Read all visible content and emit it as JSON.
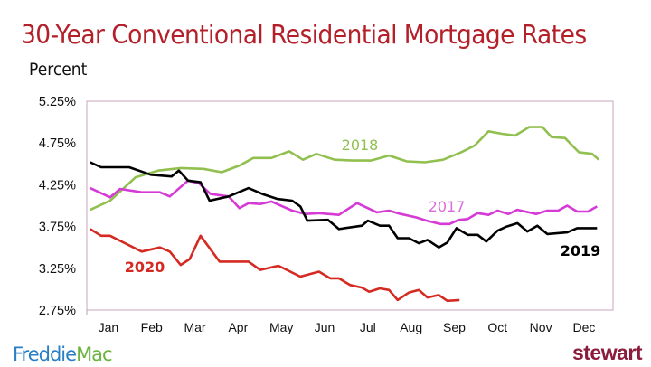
{
  "chart_data": {
    "type": "line",
    "title": "30-Year Conventional Residential Mortgage Rates",
    "ylabel": "Percent",
    "xlabel": "",
    "x_unit": "month (Jan = 1)",
    "xlim": [
      0.5,
      12.67
    ],
    "ylim": [
      2.75,
      5.25
    ],
    "y_ticks": [
      "5.25%",
      "4.75%",
      "4.25%",
      "3.75%",
      "3.25%",
      "2.75%"
    ],
    "y_tick_values": [
      5.25,
      4.75,
      4.25,
      3.75,
      3.25,
      2.75
    ],
    "x_ticks": [
      "Jan",
      "Feb",
      "Mar",
      "Apr",
      "May",
      "Jun",
      "Jul",
      "Aug",
      "Sep",
      "Oct",
      "Nov",
      "Dec"
    ],
    "grid": false,
    "legend": "inline labels",
    "series": [
      {
        "name": "2018",
        "color": "#92c050",
        "x": [
          0.58,
          1.04,
          1.63,
          2.15,
          2.67,
          3.2,
          3.62,
          4.03,
          4.35,
          4.77,
          5.18,
          5.5,
          5.81,
          6.23,
          6.65,
          7.07,
          7.49,
          7.9,
          8.32,
          8.74,
          9.16,
          9.47,
          9.79,
          10.1,
          10.41,
          10.73,
          11.04,
          11.25,
          11.56,
          11.88,
          12.19,
          12.34
        ],
        "y": [
          3.95,
          4.06,
          4.34,
          4.42,
          4.45,
          4.44,
          4.4,
          4.48,
          4.57,
          4.57,
          4.65,
          4.55,
          4.62,
          4.55,
          4.54,
          4.54,
          4.6,
          4.53,
          4.52,
          4.55,
          4.64,
          4.72,
          4.89,
          4.86,
          4.84,
          4.94,
          4.94,
          4.82,
          4.81,
          4.64,
          4.62,
          4.55
        ]
      },
      {
        "name": "2017",
        "color": "#d63ad6",
        "x": [
          0.58,
          1.04,
          1.27,
          1.77,
          2.19,
          2.42,
          2.84,
          3.09,
          3.36,
          3.78,
          4.03,
          4.24,
          4.51,
          4.77,
          5.25,
          5.56,
          5.87,
          6.33,
          6.75,
          7.21,
          7.49,
          7.76,
          8.11,
          8.36,
          8.68,
          8.89,
          9.1,
          9.31,
          9.54,
          9.79,
          10.0,
          10.25,
          10.46,
          10.89,
          11.15,
          11.4,
          11.61,
          11.84,
          12.09,
          12.3
        ],
        "y": [
          4.21,
          4.1,
          4.2,
          4.16,
          4.16,
          4.11,
          4.3,
          4.27,
          4.14,
          4.11,
          3.97,
          4.03,
          4.02,
          4.05,
          3.94,
          3.9,
          3.91,
          3.89,
          4.03,
          3.92,
          3.94,
          3.9,
          3.86,
          3.82,
          3.78,
          3.78,
          3.83,
          3.84,
          3.91,
          3.89,
          3.94,
          3.9,
          3.95,
          3.9,
          3.94,
          3.94,
          4.0,
          3.93,
          3.93,
          3.99
        ]
      },
      {
        "name": "2019",
        "color": "#000000",
        "x": [
          0.58,
          0.83,
          1.48,
          1.98,
          2.46,
          2.63,
          2.84,
          3.13,
          3.34,
          3.78,
          4.24,
          4.56,
          4.91,
          5.25,
          5.44,
          5.6,
          6.08,
          6.33,
          6.86,
          7.0,
          7.28,
          7.49,
          7.69,
          7.95,
          8.18,
          8.38,
          8.64,
          8.84,
          9.05,
          9.31,
          9.54,
          9.74,
          10.0,
          10.21,
          10.46,
          10.69,
          10.92,
          11.15,
          11.61,
          11.84,
          12.3
        ],
        "y": [
          4.52,
          4.46,
          4.46,
          4.37,
          4.35,
          4.42,
          4.3,
          4.28,
          4.06,
          4.11,
          4.21,
          4.14,
          4.08,
          4.06,
          3.99,
          3.82,
          3.83,
          3.72,
          3.76,
          3.82,
          3.76,
          3.76,
          3.61,
          3.61,
          3.55,
          3.59,
          3.5,
          3.56,
          3.73,
          3.65,
          3.65,
          3.57,
          3.7,
          3.75,
          3.79,
          3.69,
          3.76,
          3.66,
          3.68,
          3.73,
          3.73
        ]
      },
      {
        "name": "2020",
        "color": "#d42a22",
        "x": [
          0.58,
          0.83,
          1.04,
          1.77,
          2.19,
          2.42,
          2.67,
          2.88,
          3.13,
          3.57,
          3.78,
          4.24,
          4.51,
          4.93,
          5.44,
          5.87,
          6.13,
          6.33,
          6.59,
          6.86,
          7.03,
          7.28,
          7.49,
          7.69,
          7.95,
          8.18,
          8.38,
          8.64,
          8.84,
          9.12
        ],
        "y": [
          3.72,
          3.64,
          3.64,
          3.45,
          3.5,
          3.45,
          3.29,
          3.36,
          3.64,
          3.33,
          3.33,
          3.33,
          3.23,
          3.28,
          3.15,
          3.21,
          3.13,
          3.13,
          3.05,
          3.02,
          2.97,
          3.01,
          2.99,
          2.87,
          2.96,
          2.99,
          2.9,
          2.93,
          2.86,
          2.87
        ]
      }
    ],
    "annotations": [
      {
        "text": "2018",
        "series": "2018"
      },
      {
        "text": "2017",
        "series": "2017"
      },
      {
        "text": "2019",
        "series": "2019"
      },
      {
        "text": "2020",
        "series": "2020"
      }
    ]
  },
  "logos": {
    "left": "FreddieMac",
    "right": "stewart"
  }
}
